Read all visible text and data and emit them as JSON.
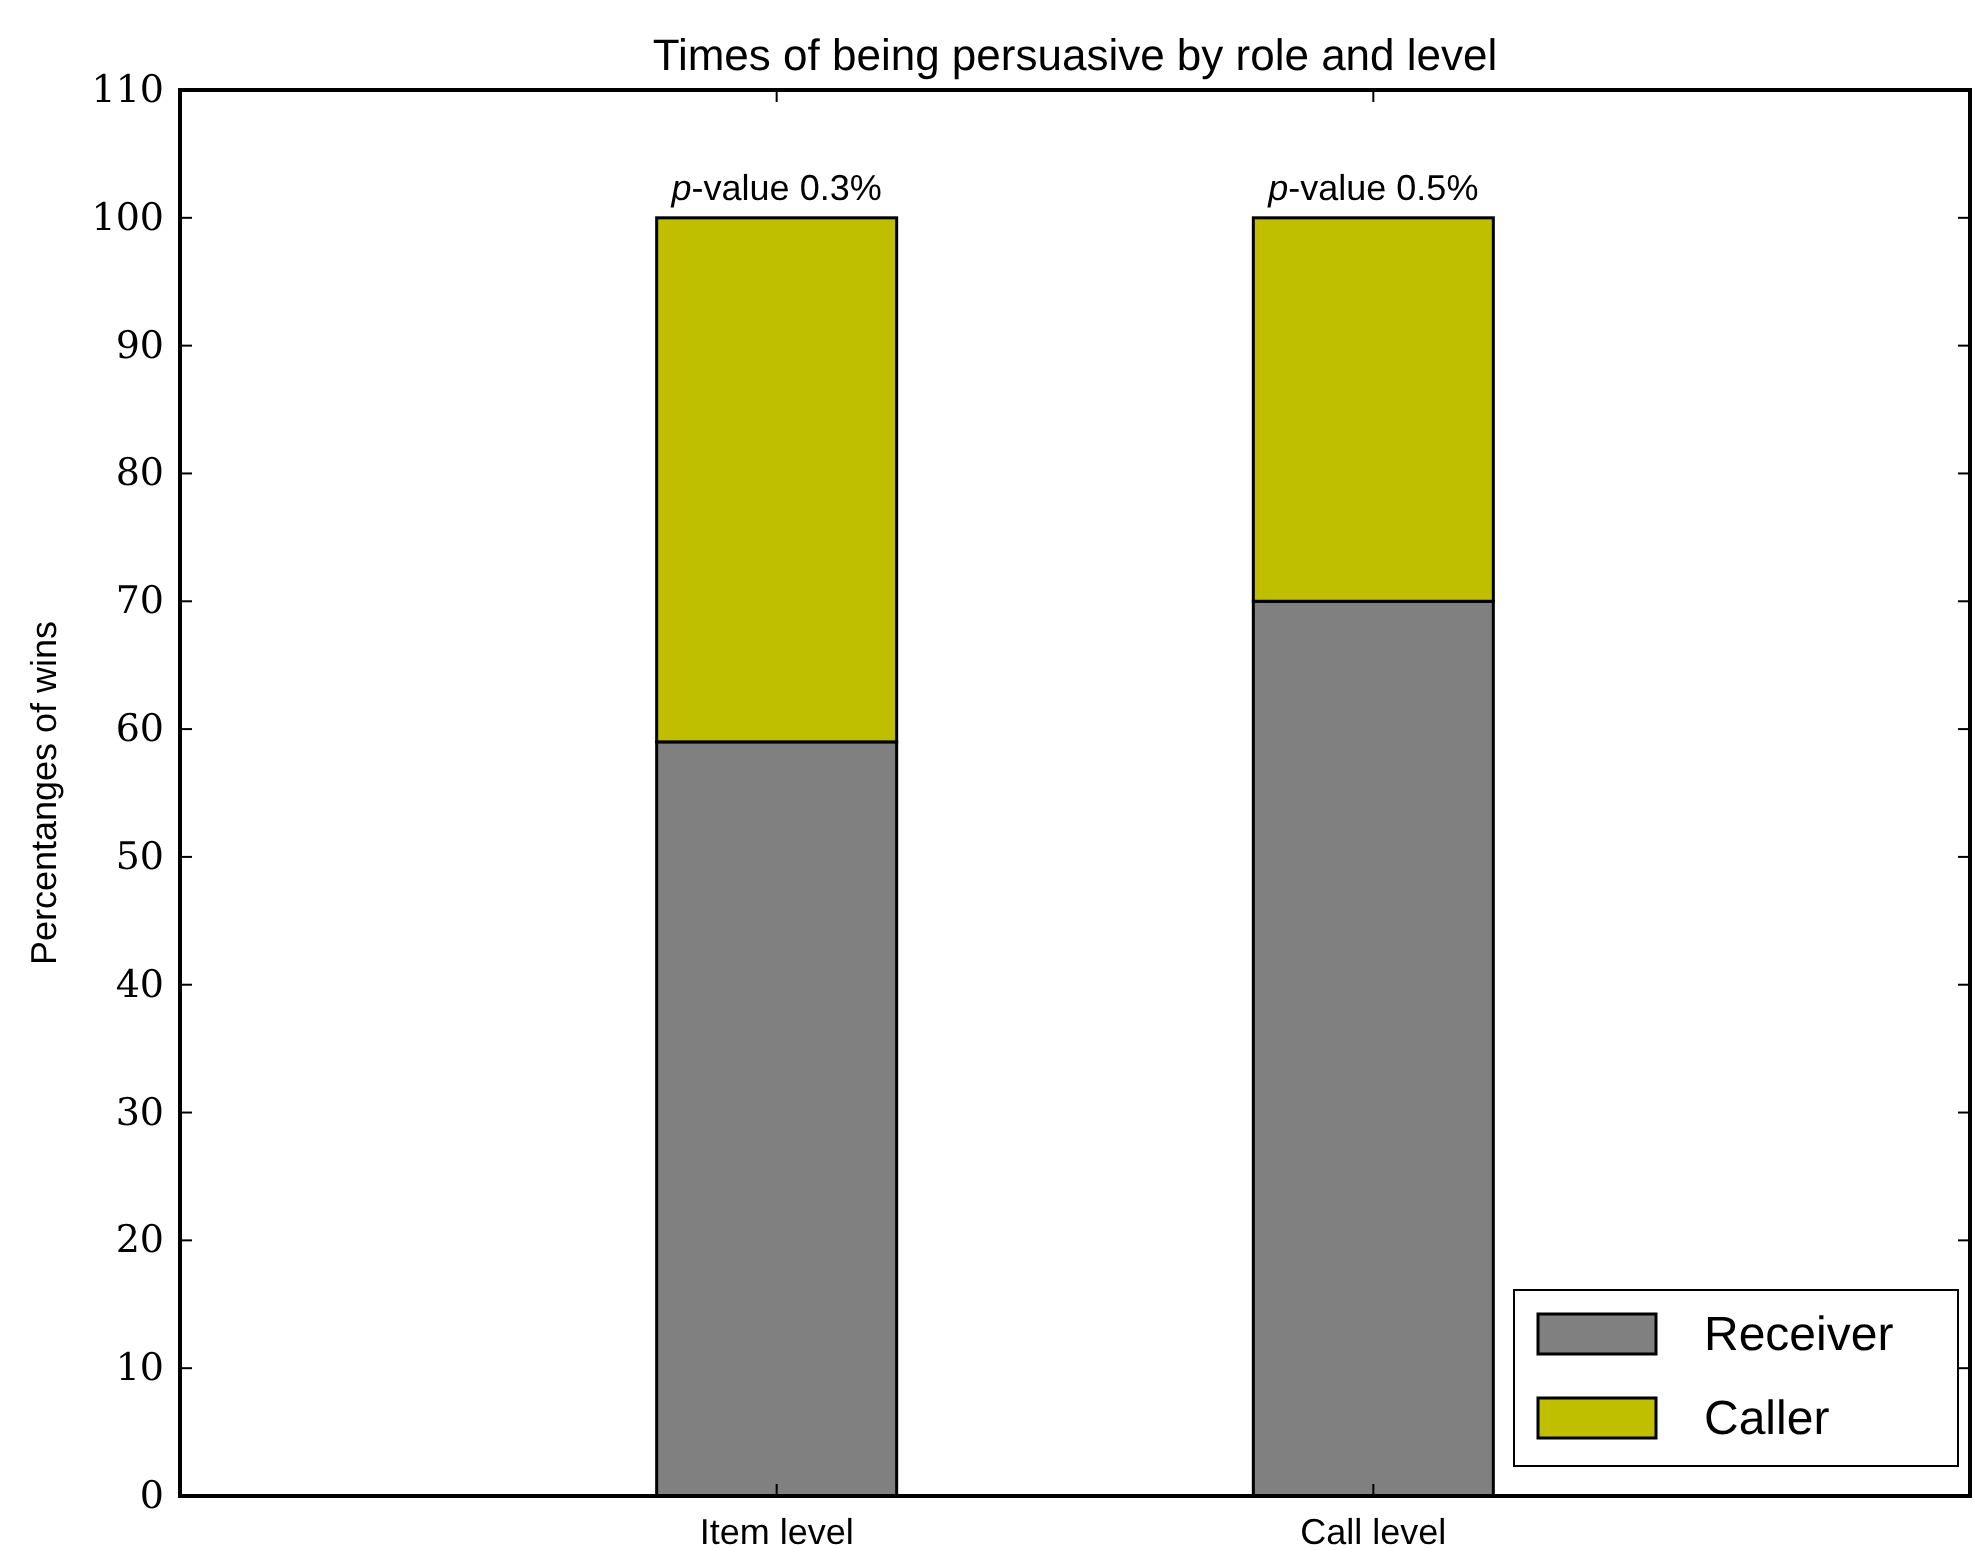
{
  "chart_data": {
    "type": "bar",
    "title": "Times of being persuasive by role and level",
    "ylabel": "Percentanges of wins",
    "categories": [
      "Item level",
      "Call level"
    ],
    "series": [
      {
        "name": "Receiver",
        "color": "#808080",
        "values": [
          59,
          70
        ]
      },
      {
        "name": "Caller",
        "color": "#bfbf00",
        "values": [
          41,
          30
        ]
      }
    ],
    "stacked": true,
    "ylim": [
      0,
      110
    ],
    "yticks": [
      0,
      10,
      20,
      30,
      40,
      50,
      60,
      70,
      80,
      90,
      100,
      110
    ],
    "grid": false,
    "legend": "bottom right",
    "annotations": [
      {
        "text": "p-value 0.3%",
        "x": "Item level",
        "y": 100
      },
      {
        "text": "p-value 0.5%",
        "x": "Call level",
        "y": 100
      }
    ]
  }
}
